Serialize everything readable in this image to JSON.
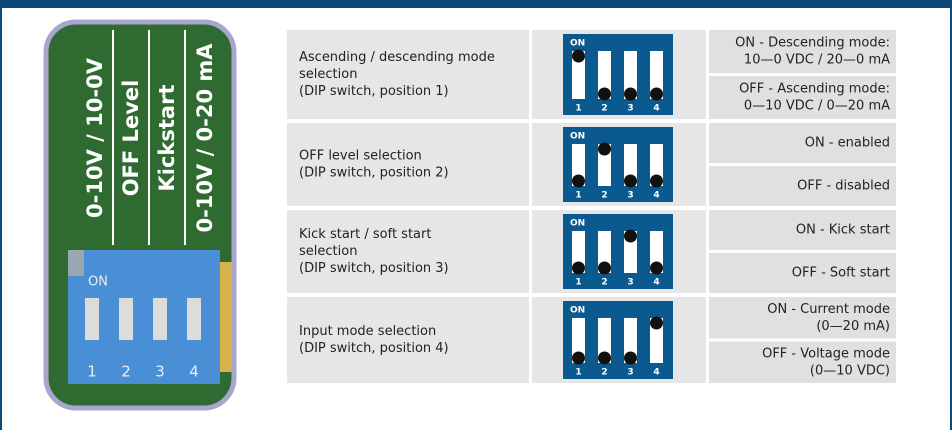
{
  "pcb": {
    "labels": [
      "0-10V / 10-0V",
      "OFF Level",
      "Kickstart",
      "0-10V / 0-20 mA"
    ],
    "dip_label": "ON",
    "numbers": [
      "1",
      "2",
      "3",
      "4"
    ]
  },
  "table": {
    "rows": [
      {
        "description": [
          "Ascending / descending mode",
          "selection",
          "(DIP switch, position 1)"
        ],
        "dip": {
          "label": "ON",
          "numbers": [
            "1",
            "2",
            "3",
            "4"
          ],
          "on_switch": 1
        },
        "on": [
          "ON - Descending mode:",
          "10—0 VDC / 20—0 mA"
        ],
        "off": [
          "OFF - Ascending mode:",
          "0—10 VDC / 0—20 mA"
        ]
      },
      {
        "description": [
          "OFF level selection",
          "(DIP switch, position 2)"
        ],
        "dip": {
          "label": "ON",
          "numbers": [
            "1",
            "2",
            "3",
            "4"
          ],
          "on_switch": 2
        },
        "on": [
          "ON - enabled"
        ],
        "off": [
          "OFF - disabled"
        ]
      },
      {
        "description": [
          "Kick start / soft start",
          "selection",
          "(DIP switch, position 3)"
        ],
        "dip": {
          "label": "ON",
          "numbers": [
            "1",
            "2",
            "3",
            "4"
          ],
          "on_switch": 3
        },
        "on": [
          "ON - Kick start"
        ],
        "off": [
          "OFF - Soft start"
        ]
      },
      {
        "description": [
          "Input mode selection",
          "(DIP switch, position 4)"
        ],
        "dip": {
          "label": "ON",
          "numbers": [
            "1",
            "2",
            "3",
            "4"
          ],
          "on_switch": 4
        },
        "on": [
          "ON - Current mode",
          "(0—20 mA)"
        ],
        "off": [
          "OFF - Voltage mode",
          "(0—10 VDC)"
        ]
      }
    ]
  }
}
